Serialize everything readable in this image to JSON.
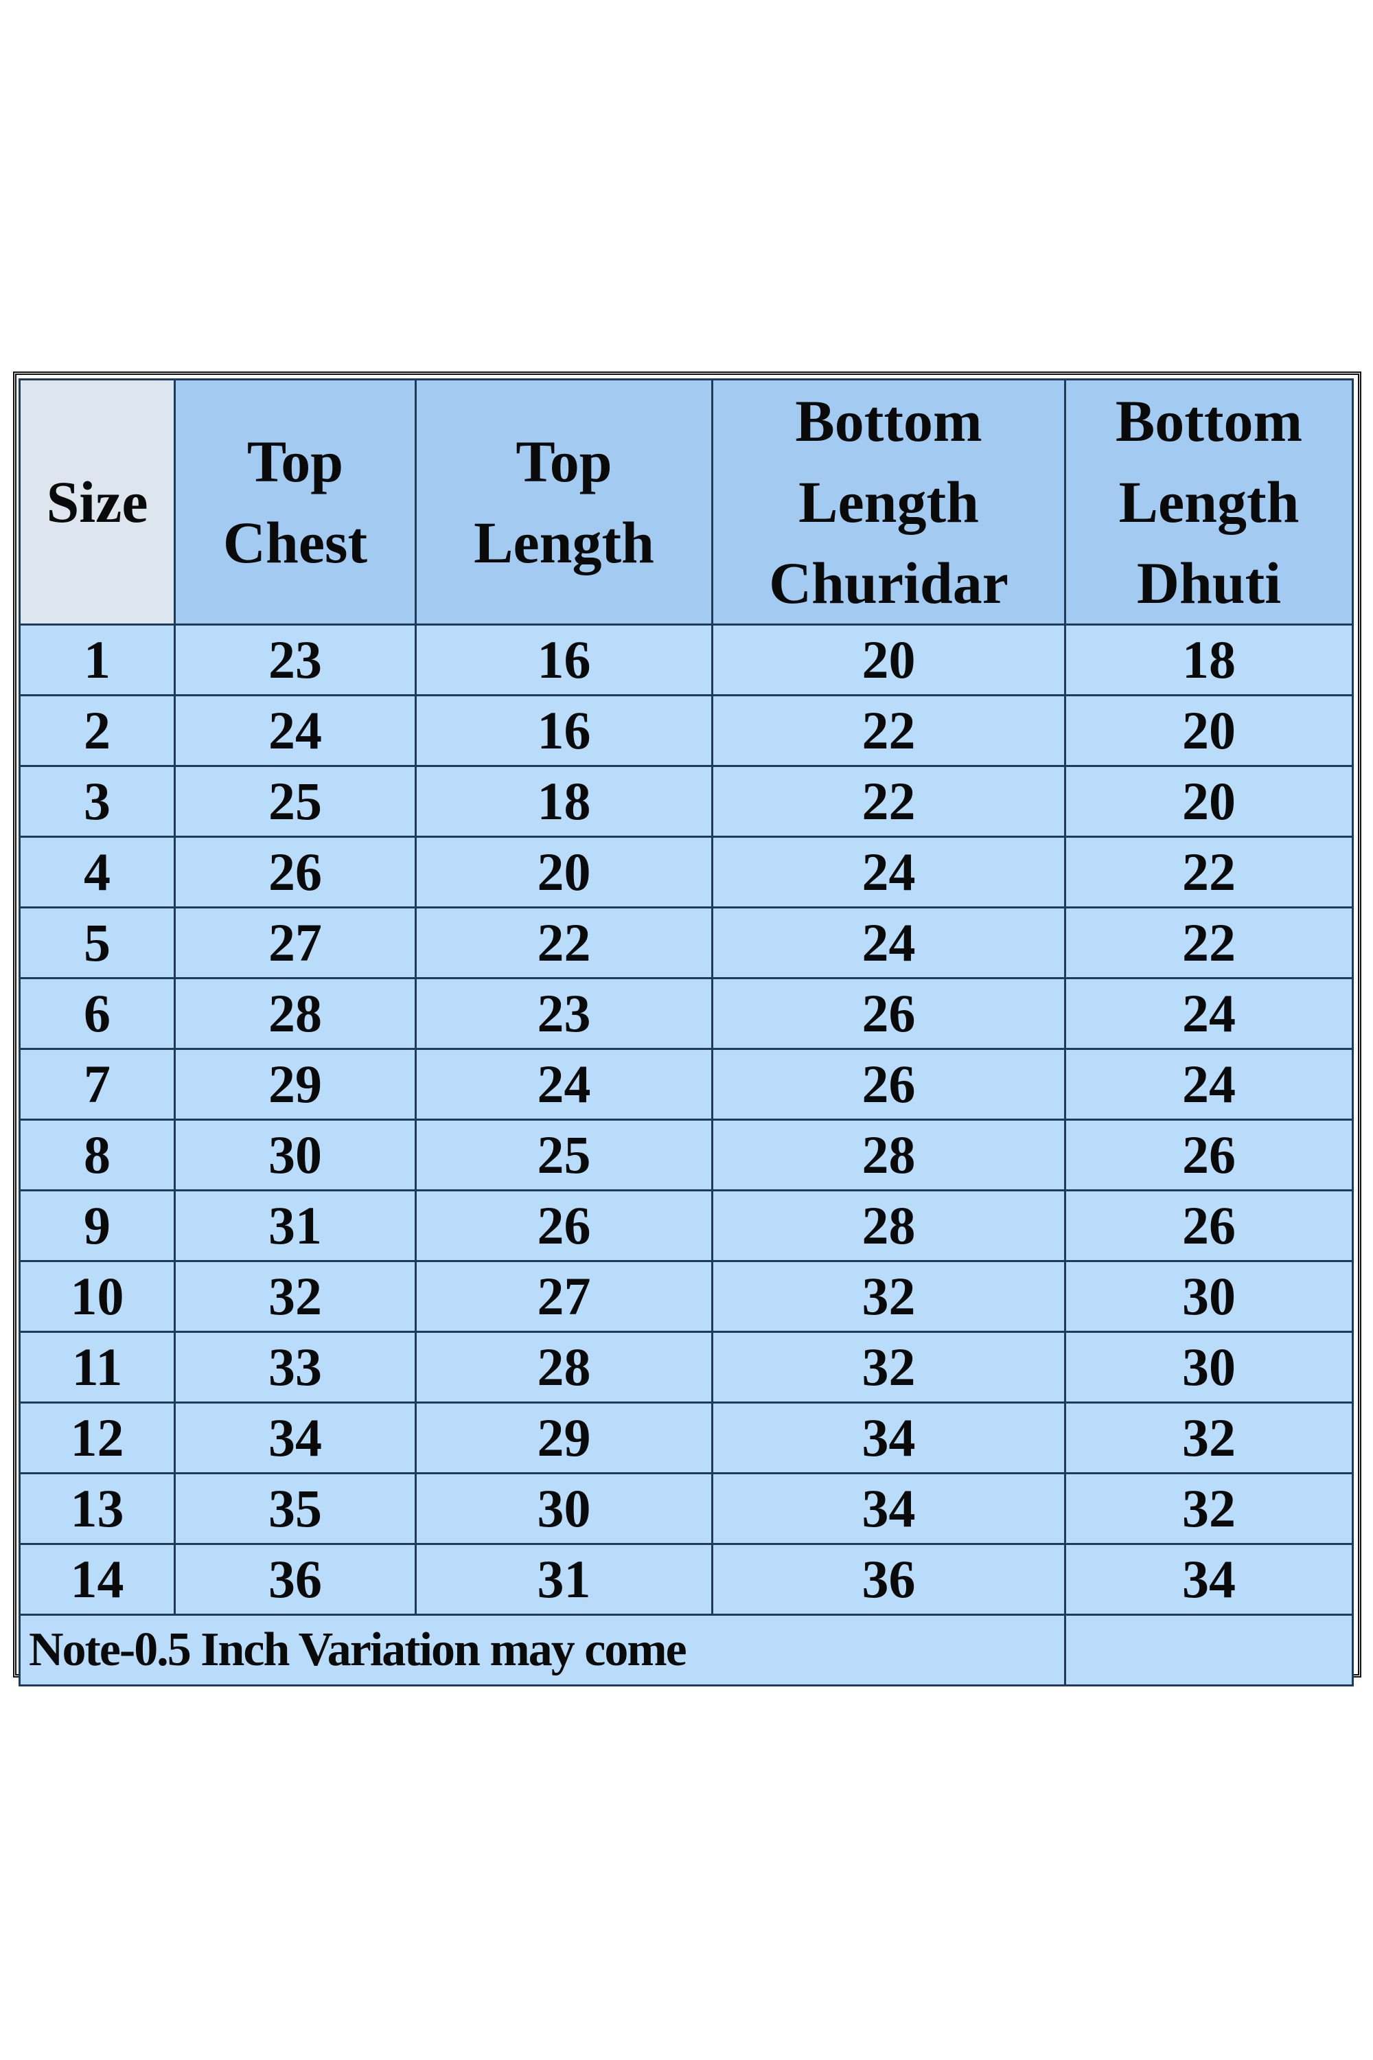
{
  "table": {
    "headers": [
      "Size",
      "Top\nChest",
      "Top\nLength",
      "Bottom\nLength\nChuridar",
      "Bottom\nLength\nDhuti"
    ],
    "rows": [
      [
        "1",
        "23",
        "16",
        "20",
        "18"
      ],
      [
        "2",
        "24",
        "16",
        "22",
        "20"
      ],
      [
        "3",
        "25",
        "18",
        "22",
        "20"
      ],
      [
        "4",
        "26",
        "20",
        "24",
        "22"
      ],
      [
        "5",
        "27",
        "22",
        "24",
        "22"
      ],
      [
        "6",
        "28",
        "23",
        "26",
        "24"
      ],
      [
        "7",
        "29",
        "24",
        "26",
        "24"
      ],
      [
        "8",
        "30",
        "25",
        "28",
        "26"
      ],
      [
        "9",
        "31",
        "26",
        "28",
        "26"
      ],
      [
        "10",
        "32",
        "27",
        "32",
        "30"
      ],
      [
        "11",
        "33",
        "28",
        "32",
        "30"
      ],
      [
        "12",
        "34",
        "29",
        "34",
        "32"
      ],
      [
        "13",
        "35",
        "30",
        "34",
        "32"
      ],
      [
        "14",
        "36",
        "31",
        "36",
        "34"
      ]
    ],
    "note": "Note-0.5 Inch Variation may come"
  },
  "colors": {
    "header": "#a3cbf2",
    "size_header": "#dde6ef",
    "cell": "#b9dcfb",
    "grid": "#1f3b5a"
  }
}
